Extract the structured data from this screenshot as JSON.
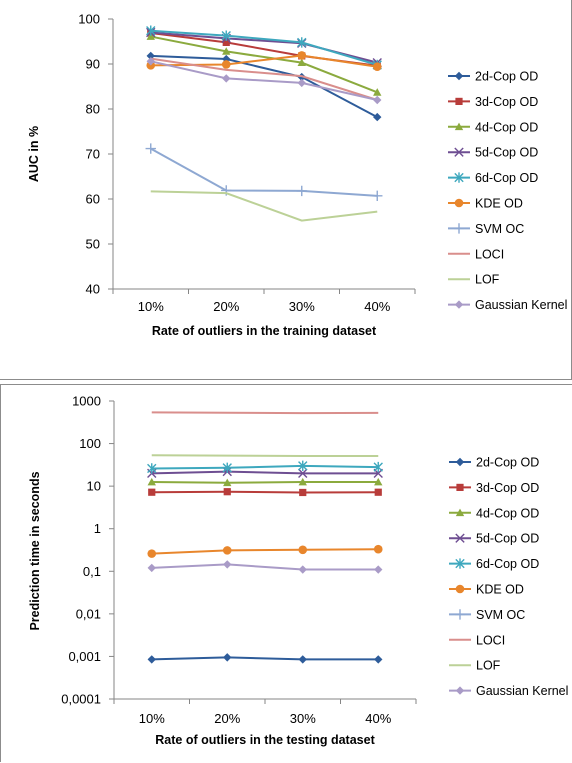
{
  "chart_data": [
    {
      "type": "line",
      "title": "",
      "xlabel": "Rate of outliers in the training dataset",
      "ylabel": "AUC in %",
      "categories": [
        "10%",
        "20%",
        "30%",
        "40%"
      ],
      "ylim": [
        40,
        100
      ],
      "yticks": [
        "40",
        "50",
        "60",
        "70",
        "80",
        "90",
        "100"
      ],
      "ytick_values": [
        40,
        50,
        60,
        70,
        80,
        90,
        100
      ],
      "grid": false,
      "legend_position": "right",
      "series": [
        {
          "name": "2d-Cop OD",
          "values": [
            91.8,
            91.1,
            87.1,
            78.2
          ],
          "color": "#2E5C9A",
          "marker": "diamond"
        },
        {
          "name": "3d-Cop OD",
          "values": [
            96.9,
            94.8,
            91.8,
            89.6
          ],
          "color": "#B83C3A",
          "marker": "square"
        },
        {
          "name": "4d-Cop OD",
          "values": [
            96.1,
            92.8,
            90.3,
            83.7
          ],
          "color": "#8BAA3E",
          "marker": "triangle"
        },
        {
          "name": "5d-Cop OD",
          "values": [
            97.0,
            95.7,
            94.6,
            90.3
          ],
          "color": "#6E4E92",
          "marker": "x"
        },
        {
          "name": "6d-Cop OD",
          "values": [
            97.4,
            96.3,
            94.8,
            89.8
          ],
          "color": "#3EA8BE",
          "marker": "star"
        },
        {
          "name": "KDE OD",
          "values": [
            89.7,
            89.9,
            91.9,
            89.4
          ],
          "color": "#E8862C",
          "marker": "circle"
        },
        {
          "name": "SVM OC",
          "values": [
            71.2,
            61.9,
            61.8,
            60.7
          ],
          "color": "#8EA8D2",
          "marker": "plus"
        },
        {
          "name": "LOCI",
          "values": [
            91.2,
            88.7,
            87.3,
            82.0
          ],
          "color": "#D98E8C",
          "marker": "none"
        },
        {
          "name": "LOF",
          "values": [
            61.7,
            61.3,
            55.2,
            57.2
          ],
          "color": "#BCD197",
          "marker": "none"
        },
        {
          "name": "Gaussian Kernel",
          "values": [
            90.6,
            86.8,
            85.8,
            82.0
          ],
          "color": "#A99BC7",
          "marker": "diamond"
        }
      ]
    },
    {
      "type": "line",
      "title": "",
      "xlabel": "Rate of outliers in the testing dataset",
      "ylabel": "Prediction time in seconds",
      "categories": [
        "10%",
        "20%",
        "30%",
        "40%"
      ],
      "yscale": "log",
      "ylim": [
        0.0001,
        1000
      ],
      "yticks": [
        "0,0001",
        "0,001",
        "0,01",
        "0,1",
        "1",
        "10",
        "100",
        "1000"
      ],
      "ytick_values": [
        0.0001,
        0.001,
        0.01,
        0.1,
        1,
        10,
        100,
        1000
      ],
      "grid": false,
      "legend_position": "right",
      "series": [
        {
          "name": "2d-Cop OD",
          "values": [
            0.00085,
            0.00095,
            0.00085,
            0.00085
          ],
          "color": "#2E5C9A",
          "marker": "diamond"
        },
        {
          "name": "3d-Cop OD",
          "values": [
            7.2,
            7.4,
            7.1,
            7.2
          ],
          "color": "#B83C3A",
          "marker": "square"
        },
        {
          "name": "4d-Cop OD",
          "values": [
            12.5,
            12.0,
            12.5,
            12.5
          ],
          "color": "#8BAA3E",
          "marker": "triangle"
        },
        {
          "name": "5d-Cop OD",
          "values": [
            20,
            22,
            20,
            20
          ],
          "color": "#6E4E92",
          "marker": "x"
        },
        {
          "name": "6d-Cop OD",
          "values": [
            26,
            27,
            30,
            28
          ],
          "color": "#3EA8BE",
          "marker": "star"
        },
        {
          "name": "KDE OD",
          "values": [
            0.26,
            0.31,
            0.32,
            0.33
          ],
          "color": "#E8862C",
          "marker": "circle"
        },
        {
          "name": "SVM OC",
          "values": [
            null,
            null,
            null,
            null
          ],
          "color": "#8EA8D2",
          "marker": "plus"
        },
        {
          "name": "LOCI",
          "values": [
            540,
            530,
            520,
            525
          ],
          "color": "#D98E8C",
          "marker": "none"
        },
        {
          "name": "LOF",
          "values": [
            53,
            52,
            51,
            51
          ],
          "color": "#BCD197",
          "marker": "none"
        },
        {
          "name": "Gaussian Kernel",
          "values": [
            0.12,
            0.145,
            0.11,
            0.11
          ],
          "color": "#A99BC7",
          "marker": "diamond"
        }
      ]
    }
  ]
}
